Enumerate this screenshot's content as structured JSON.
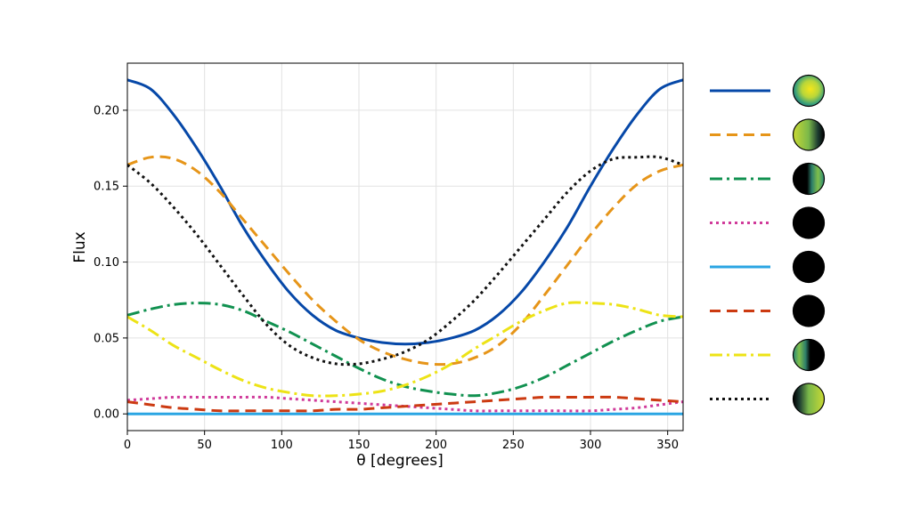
{
  "chart_data": {
    "type": "line",
    "title": "",
    "xlabel": "θ [degrees]",
    "ylabel": "Flux",
    "xlim": [
      0,
      360
    ],
    "ylim": [
      -0.011,
      0.231
    ],
    "grid": true,
    "legend": "right",
    "xticks": [
      "0",
      "50",
      "100",
      "150",
      "200",
      "250",
      "300",
      "350"
    ],
    "yticks": [
      "0.00",
      "0.05",
      "0.10",
      "0.15",
      "0.20"
    ],
    "x": [
      0,
      15,
      30,
      45,
      60,
      75,
      90,
      105,
      120,
      135,
      150,
      165,
      180,
      195,
      210,
      225,
      240,
      255,
      270,
      285,
      300,
      315,
      330,
      345,
      360
    ],
    "series": [
      {
        "color": "#0648a8",
        "dash": "",
        "disk": "yellow",
        "values": [
          0.22,
          0.214,
          0.197,
          0.175,
          0.15,
          0.123,
          0.1,
          0.08,
          0.065,
          0.055,
          0.05,
          0.047,
          0.046,
          0.047,
          0.05,
          0.055,
          0.065,
          0.08,
          0.1,
          0.123,
          0.15,
          0.175,
          0.197,
          0.214,
          0.22
        ]
      },
      {
        "color": "#e69519",
        "dash": "12 7",
        "disk": "yellow-right-dark",
        "values": [
          0.164,
          0.169,
          0.168,
          0.16,
          0.146,
          0.128,
          0.11,
          0.092,
          0.075,
          0.061,
          0.049,
          0.041,
          0.036,
          0.033,
          0.033,
          0.037,
          0.045,
          0.059,
          0.078,
          0.098,
          0.118,
          0.136,
          0.151,
          0.16,
          0.164
        ]
      },
      {
        "color": "#119150",
        "dash": "14 5 3 5",
        "disk": "right-lit",
        "values": [
          0.065,
          0.069,
          0.072,
          0.073,
          0.072,
          0.068,
          0.061,
          0.054,
          0.046,
          0.038,
          0.03,
          0.023,
          0.018,
          0.015,
          0.013,
          0.012,
          0.014,
          0.018,
          0.024,
          0.032,
          0.04,
          0.048,
          0.055,
          0.061,
          0.064
        ]
      },
      {
        "color": "#d03a9a",
        "dash": "3 4",
        "disk": "dark",
        "values": [
          0.009,
          0.01,
          0.011,
          0.011,
          0.011,
          0.011,
          0.011,
          0.01,
          0.009,
          0.008,
          0.007,
          0.006,
          0.005,
          0.004,
          0.003,
          0.002,
          0.002,
          0.002,
          0.002,
          0.002,
          0.002,
          0.003,
          0.004,
          0.006,
          0.008
        ]
      },
      {
        "color": "#2aa5e3",
        "dash": "",
        "disk": "dark",
        "values": [
          0,
          0,
          0,
          0,
          0,
          0,
          0,
          0,
          0,
          0,
          0,
          0,
          0,
          0,
          0,
          0,
          0,
          0,
          0,
          0,
          0,
          0,
          0,
          0,
          0
        ]
      },
      {
        "color": "#cc3a11",
        "dash": "12 7",
        "disk": "dark",
        "values": [
          0.008,
          0.006,
          0.004,
          0.003,
          0.002,
          0.002,
          0.002,
          0.002,
          0.002,
          0.003,
          0.003,
          0.004,
          0.005,
          0.006,
          0.007,
          0.008,
          0.009,
          0.01,
          0.011,
          0.011,
          0.011,
          0.011,
          0.01,
          0.009,
          0.008
        ]
      },
      {
        "color": "#ede316",
        "dash": "14 5 3 5",
        "disk": "left-lit",
        "values": [
          0.064,
          0.055,
          0.045,
          0.037,
          0.029,
          0.022,
          0.017,
          0.014,
          0.012,
          0.012,
          0.013,
          0.015,
          0.019,
          0.025,
          0.033,
          0.043,
          0.052,
          0.061,
          0.068,
          0.073,
          0.073,
          0.072,
          0.069,
          0.065,
          0.064
        ]
      },
      {
        "color": "#111111",
        "dash": "3 4",
        "disk": "yellow-left-dark",
        "values": [
          0.164,
          0.152,
          0.136,
          0.118,
          0.098,
          0.078,
          0.059,
          0.045,
          0.037,
          0.033,
          0.033,
          0.036,
          0.041,
          0.049,
          0.061,
          0.075,
          0.092,
          0.11,
          0.128,
          0.146,
          0.16,
          0.168,
          0.169,
          0.169,
          0.164
        ]
      }
    ]
  }
}
